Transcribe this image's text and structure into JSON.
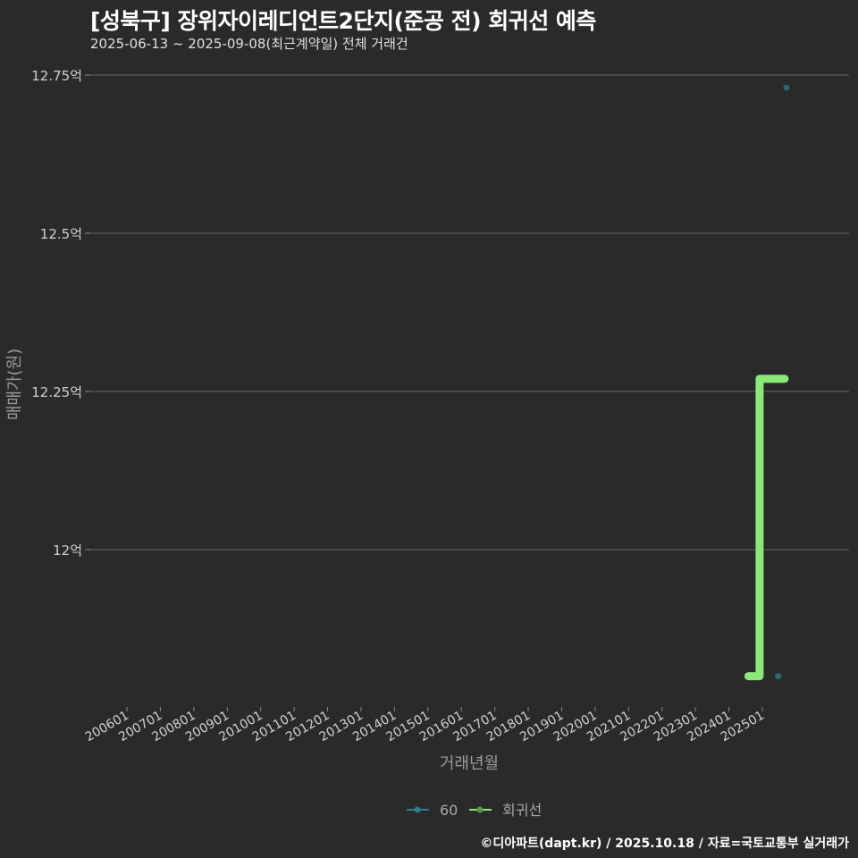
{
  "header": {
    "title": "[성북구] 장위자이레디언트2단지(준공 전) 회귀선 예측",
    "subtitle": "2025-06-13 ~ 2025-09-08(최근계약일) 전체 거래건"
  },
  "footer": {
    "credit": "©디아파트(dapt.kr) / 2025.10.18 / 자료=국토교통부 실거래가"
  },
  "colors": {
    "background": "#2a2a2a",
    "grid": "#5a5a5a",
    "series_60": "#2e7f86",
    "regression": "#8de87a"
  },
  "chart_data": {
    "type": "scatter",
    "title": "[성북구] 장위자이레디언트2단지(준공 전) 회귀선 예측",
    "subtitle": "2025-06-13 ~ 2025-09-08(최근계약일) 전체 거래건",
    "xlabel": "거래년월",
    "ylabel": "매매가(원)",
    "x_ticks": [
      "200601",
      "200701",
      "200801",
      "200901",
      "201001",
      "201101",
      "201201",
      "201301",
      "201401",
      "201501",
      "201601",
      "201701",
      "201801",
      "201901",
      "202001",
      "202101",
      "202201",
      "202301",
      "202401",
      "202501"
    ],
    "y_ticks": [
      {
        "value": 12.0,
        "label": "12억"
      },
      {
        "value": 12.25,
        "label": "12.25억"
      },
      {
        "value": 12.5,
        "label": "12.5억"
      },
      {
        "value": 12.75,
        "label": "12.75억"
      }
    ],
    "ylim": [
      11.75,
      12.8
    ],
    "grid": "horizontal major",
    "legend_position": "bottom",
    "series": [
      {
        "name": "60",
        "kind": "points",
        "color": "#2e7f86",
        "points": [
          {
            "x": "2025-06",
            "y": 11.8
          },
          {
            "x": "2025-09",
            "y": 12.73
          }
        ]
      },
      {
        "name": "회귀선",
        "kind": "step-line",
        "color": "#8de87a",
        "points": [
          {
            "x": "2024-08",
            "y": 11.8
          },
          {
            "x": "2024-12",
            "y": 11.8
          },
          {
            "x": "2024-12",
            "y": 12.27
          },
          {
            "x": "2025-09",
            "y": 12.27
          }
        ]
      }
    ]
  },
  "legend": {
    "items": [
      {
        "label": "60"
      },
      {
        "label": "회귀선"
      }
    ]
  }
}
